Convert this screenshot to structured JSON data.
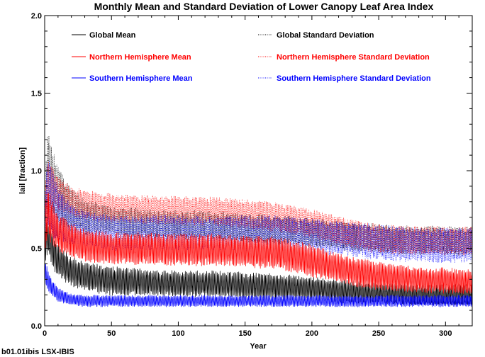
{
  "chart_data": {
    "type": "line",
    "title": "Monthly Mean and Standard Deviation of Lower Canopy Leaf Area Index",
    "xlabel": "Year",
    "ylabel": "lail [fraction]",
    "xlim": [
      0,
      320
    ],
    "ylim": [
      0.0,
      2.0
    ],
    "x_ticks": [
      0,
      50,
      100,
      150,
      200,
      250,
      300
    ],
    "x_tick_labels": [
      "0",
      "50",
      "100",
      "150",
      "200",
      "250",
      "300"
    ],
    "y_ticks": [
      0.0,
      0.5,
      1.0,
      1.5,
      2.0
    ],
    "y_tick_labels": [
      "0.0",
      "0.5",
      "1.0",
      "1.5",
      "2.0"
    ],
    "grid": false,
    "legend_position": "top",
    "caption": "b01.01ibis LSX-IBIS",
    "colors": {
      "black": "#000000",
      "red": "#ff0000",
      "blue": "#0000ff"
    },
    "series": [
      {
        "name": "Global Mean",
        "color": "#000000",
        "style": "solid",
        "x": [
          0,
          2,
          5,
          10,
          20,
          30,
          50,
          75,
          100,
          125,
          150,
          175,
          200,
          225,
          250,
          275,
          300,
          320
        ],
        "center": [
          0.5,
          0.58,
          0.52,
          0.42,
          0.35,
          0.32,
          0.29,
          0.28,
          0.27,
          0.27,
          0.26,
          0.25,
          0.24,
          0.22,
          0.21,
          0.2,
          0.2,
          0.2
        ],
        "amplitude": [
          0.12,
          0.14,
          0.13,
          0.12,
          0.1,
          0.1,
          0.1,
          0.09,
          0.09,
          0.09,
          0.09,
          0.09,
          0.08,
          0.08,
          0.07,
          0.07,
          0.07,
          0.07
        ]
      },
      {
        "name": "Global Standard Deviation",
        "color": "#000000",
        "style": "dotted",
        "x": [
          0,
          2,
          5,
          10,
          20,
          30,
          50,
          75,
          100,
          125,
          150,
          175,
          200,
          225,
          250,
          275,
          300,
          320
        ],
        "center": [
          0.7,
          1.0,
          0.95,
          0.85,
          0.75,
          0.7,
          0.68,
          0.66,
          0.65,
          0.65,
          0.63,
          0.62,
          0.6,
          0.58,
          0.56,
          0.55,
          0.55,
          0.55
        ],
        "amplitude": [
          0.15,
          0.3,
          0.25,
          0.2,
          0.15,
          0.12,
          0.1,
          0.1,
          0.1,
          0.1,
          0.1,
          0.1,
          0.1,
          0.1,
          0.1,
          0.1,
          0.1,
          0.1
        ]
      },
      {
        "name": "Northern Hemisphere Mean",
        "color": "#ff0000",
        "style": "solid",
        "x": [
          0,
          2,
          5,
          10,
          20,
          30,
          50,
          75,
          100,
          125,
          150,
          175,
          200,
          225,
          250,
          275,
          300,
          320
        ],
        "center": [
          0.6,
          0.72,
          0.68,
          0.6,
          0.55,
          0.52,
          0.5,
          0.5,
          0.49,
          0.49,
          0.48,
          0.47,
          0.42,
          0.36,
          0.32,
          0.3,
          0.29,
          0.28
        ],
        "amplitude": [
          0.15,
          0.18,
          0.16,
          0.14,
          0.12,
          0.11,
          0.11,
          0.11,
          0.11,
          0.11,
          0.11,
          0.11,
          0.11,
          0.1,
          0.1,
          0.09,
          0.09,
          0.09
        ]
      },
      {
        "name": "Northern Hemisphere Standard Deviation",
        "color": "#ff0000",
        "style": "dotted",
        "x": [
          0,
          2,
          5,
          10,
          20,
          30,
          50,
          75,
          100,
          125,
          150,
          175,
          200,
          225,
          250,
          275,
          300,
          320
        ],
        "center": [
          0.75,
          0.95,
          0.9,
          0.85,
          0.8,
          0.78,
          0.76,
          0.75,
          0.74,
          0.74,
          0.72,
          0.7,
          0.66,
          0.6,
          0.56,
          0.55,
          0.55,
          0.55
        ],
        "amplitude": [
          0.12,
          0.15,
          0.14,
          0.12,
          0.1,
          0.1,
          0.1,
          0.1,
          0.1,
          0.1,
          0.1,
          0.1,
          0.1,
          0.1,
          0.1,
          0.1,
          0.1,
          0.1
        ]
      },
      {
        "name": "Southern Hemisphere Mean",
        "color": "#0000ff",
        "style": "solid",
        "x": [
          0,
          2,
          5,
          10,
          20,
          30,
          50,
          75,
          100,
          125,
          150,
          175,
          200,
          225,
          250,
          275,
          300,
          320
        ],
        "center": [
          0.35,
          0.3,
          0.25,
          0.2,
          0.17,
          0.16,
          0.16,
          0.16,
          0.16,
          0.16,
          0.16,
          0.16,
          0.16,
          0.16,
          0.16,
          0.16,
          0.16,
          0.16
        ],
        "amplitude": [
          0.1,
          0.08,
          0.06,
          0.05,
          0.04,
          0.04,
          0.04,
          0.04,
          0.04,
          0.04,
          0.04,
          0.04,
          0.04,
          0.04,
          0.04,
          0.04,
          0.04,
          0.04
        ]
      },
      {
        "name": "Southern Hemisphere Standard Deviation",
        "color": "#0000ff",
        "style": "dotted",
        "x": [
          0,
          2,
          5,
          10,
          20,
          30,
          50,
          75,
          100,
          125,
          150,
          175,
          200,
          225,
          250,
          275,
          300,
          320
        ],
        "center": [
          0.65,
          0.85,
          0.8,
          0.72,
          0.66,
          0.63,
          0.6,
          0.6,
          0.6,
          0.6,
          0.6,
          0.6,
          0.58,
          0.56,
          0.54,
          0.52,
          0.52,
          0.52
        ],
        "amplitude": [
          0.15,
          0.28,
          0.24,
          0.18,
          0.14,
          0.12,
          0.12,
          0.12,
          0.12,
          0.12,
          0.12,
          0.12,
          0.12,
          0.12,
          0.12,
          0.12,
          0.12,
          0.12
        ]
      }
    ]
  }
}
